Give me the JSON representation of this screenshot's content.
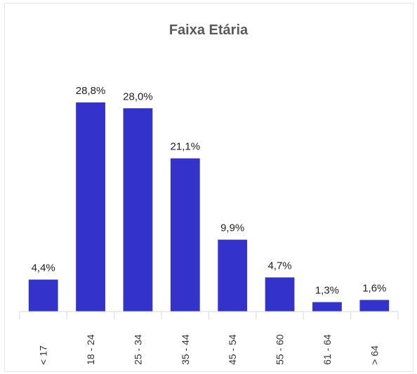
{
  "chart_data": {
    "type": "bar",
    "title": "Faixa Etária",
    "categories": [
      "< 17",
      "18 - 24",
      "25 - 34",
      "35 - 44",
      "45 - 54",
      "55 - 60",
      "61 - 64",
      "> 64"
    ],
    "values": [
      4.4,
      28.8,
      28.0,
      21.1,
      9.9,
      4.7,
      1.3,
      1.6
    ],
    "value_labels": [
      "4,4%",
      "28,8%",
      "28,0%",
      "21,1%",
      "9,9%",
      "4,7%",
      "1,3%",
      "1,6%"
    ],
    "color": "#3333cc"
  }
}
